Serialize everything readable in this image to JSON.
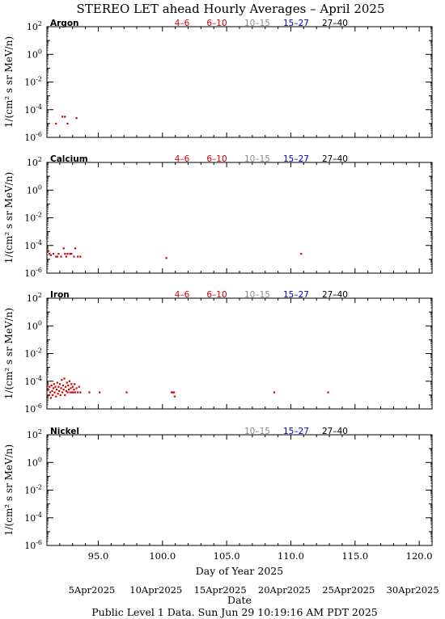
{
  "title": "STEREO LET ahead Hourly Averages – April 2025",
  "footer": "Public Level 1 Data. Sun Jun 29 10:19:16 AM PDT 2025",
  "colors": {
    "red": "#cc0000",
    "gray": "#8c8c8c",
    "blue": "#0000cc",
    "black": "#000000",
    "data": "#cc0000"
  },
  "chart_data": {
    "type": "scatter",
    "ylabel": "1/(cm² s sr MeV/n)",
    "xlabel": "Day of Year 2025",
    "date_axis_label": "Date",
    "xlim": [
      91,
      121
    ],
    "ylim_log10": [
      -6,
      2
    ],
    "y_scale": "log",
    "x_ticks": [
      95.0,
      100.0,
      105.0,
      110.0,
      115.0,
      120.0
    ],
    "x_tick_labels": [
      "95.0",
      "100.0",
      "105.0",
      "110.0",
      "115.0",
      "120.0"
    ],
    "date_ticks": [
      {
        "doy": 95,
        "label": "5Apr2025"
      },
      {
        "doy": 100,
        "label": "10Apr2025"
      },
      {
        "doy": 105,
        "label": "15Apr2025"
      },
      {
        "doy": 110,
        "label": "20Apr2025"
      },
      {
        "doy": 115,
        "label": "25Apr2025"
      },
      {
        "doy": 120,
        "label": "30Apr2025"
      }
    ],
    "y_ticks_log10": [
      2,
      0,
      -2,
      -4,
      -6
    ],
    "y_tick_labels": [
      {
        "base": "10",
        "exp": "2"
      },
      {
        "base": "10",
        "exp": "0"
      },
      {
        "base": "10",
        "exp": "-2"
      },
      {
        "base": "10",
        "exp": "-4"
      },
      {
        "base": "10",
        "exp": "-6"
      }
    ],
    "panels": [
      {
        "element": "Argon",
        "legend": [
          {
            "label": "4–6",
            "color": "#cc0000"
          },
          {
            "label": "6–10",
            "color": "#cc0000"
          },
          {
            "label": "10–15",
            "color": "#8c8c8c"
          },
          {
            "label": "15–27",
            "color": "#0000cc"
          },
          {
            "label": "27–40",
            "color": "#000000"
          }
        ],
        "points": [
          [
            91.7,
            -5.0
          ],
          [
            92.2,
            -4.5
          ],
          [
            92.4,
            -4.5
          ],
          [
            92.6,
            -5.0
          ],
          [
            93.3,
            -4.6
          ]
        ]
      },
      {
        "element": "Calcium",
        "legend": [
          {
            "label": "4–6",
            "color": "#cc0000"
          },
          {
            "label": "6–10",
            "color": "#cc0000"
          },
          {
            "label": "10–15",
            "color": "#8c8c8c"
          },
          {
            "label": "15–27",
            "color": "#0000cc"
          },
          {
            "label": "27–40",
            "color": "#000000"
          }
        ],
        "points": [
          [
            91.1,
            -4.4
          ],
          [
            91.2,
            -4.6
          ],
          [
            91.3,
            -4.7
          ],
          [
            91.5,
            -4.6
          ],
          [
            91.7,
            -4.8
          ],
          [
            91.8,
            -4.8
          ],
          [
            91.9,
            -4.6
          ],
          [
            92.1,
            -4.8
          ],
          [
            92.3,
            -4.2
          ],
          [
            92.4,
            -4.6
          ],
          [
            92.5,
            -4.8
          ],
          [
            92.6,
            -4.6
          ],
          [
            92.8,
            -4.6
          ],
          [
            92.9,
            -4.6
          ],
          [
            93.1,
            -4.8
          ],
          [
            93.2,
            -4.2
          ],
          [
            93.4,
            -4.8
          ],
          [
            93.6,
            -4.8
          ],
          [
            100.3,
            -4.9
          ],
          [
            110.8,
            -4.6
          ]
        ]
      },
      {
        "element": "Iron",
        "legend": [
          {
            "label": "4–6",
            "color": "#cc0000"
          },
          {
            "label": "6–10",
            "color": "#cc0000"
          },
          {
            "label": "10–15",
            "color": "#8c8c8c"
          },
          {
            "label": "15–27",
            "color": "#0000cc"
          },
          {
            "label": "27–40",
            "color": "#000000"
          }
        ],
        "points": [
          [
            91.05,
            -4.2
          ],
          [
            91.1,
            -4.6
          ],
          [
            91.15,
            -5.0
          ],
          [
            91.2,
            -4.4
          ],
          [
            91.25,
            -4.8
          ],
          [
            91.3,
            -5.2
          ],
          [
            91.35,
            -4.3
          ],
          [
            91.4,
            -4.7
          ],
          [
            91.45,
            -5.0
          ],
          [
            91.5,
            -4.5
          ],
          [
            91.55,
            -4.2
          ],
          [
            91.6,
            -4.8
          ],
          [
            91.65,
            -4.4
          ],
          [
            91.7,
            -5.1
          ],
          [
            91.75,
            -4.6
          ],
          [
            91.8,
            -4.1
          ],
          [
            91.85,
            -4.9
          ],
          [
            91.9,
            -4.4
          ],
          [
            91.95,
            -4.7
          ],
          [
            92.0,
            -4.2
          ],
          [
            92.05,
            -5.0
          ],
          [
            92.1,
            -4.5
          ],
          [
            92.15,
            -3.9
          ],
          [
            92.2,
            -4.8
          ],
          [
            92.25,
            -4.3
          ],
          [
            92.3,
            -4.6
          ],
          [
            92.35,
            -3.8
          ],
          [
            92.4,
            -5.0
          ],
          [
            92.45,
            -4.4
          ],
          [
            92.5,
            -4.7
          ],
          [
            92.55,
            -4.1
          ],
          [
            92.6,
            -4.8
          ],
          [
            92.65,
            -4.3
          ],
          [
            92.7,
            -4.6
          ],
          [
            92.75,
            -4.0
          ],
          [
            92.8,
            -4.8
          ],
          [
            92.85,
            -4.5
          ],
          [
            92.9,
            -4.2
          ],
          [
            92.95,
            -4.8
          ],
          [
            93.0,
            -4.4
          ],
          [
            93.05,
            -4.8
          ],
          [
            93.1,
            -4.6
          ],
          [
            93.15,
            -4.2
          ],
          [
            93.2,
            -4.8
          ],
          [
            93.3,
            -4.5
          ],
          [
            93.4,
            -4.8
          ],
          [
            93.5,
            -4.4
          ],
          [
            93.6,
            -4.8
          ],
          [
            94.3,
            -4.8
          ],
          [
            95.1,
            -4.8
          ],
          [
            97.2,
            -4.8
          ],
          [
            100.7,
            -4.8
          ],
          [
            100.8,
            -4.8
          ],
          [
            100.9,
            -4.8
          ],
          [
            100.95,
            -5.1
          ],
          [
            108.7,
            -4.8
          ],
          [
            112.9,
            -4.8
          ]
        ]
      },
      {
        "element": "Nickel",
        "legend": [
          {
            "label": "10–15",
            "color": "#8c8c8c"
          },
          {
            "label": "15–27",
            "color": "#0000cc"
          },
          {
            "label": "27–40",
            "color": "#000000"
          }
        ],
        "points": []
      }
    ]
  }
}
